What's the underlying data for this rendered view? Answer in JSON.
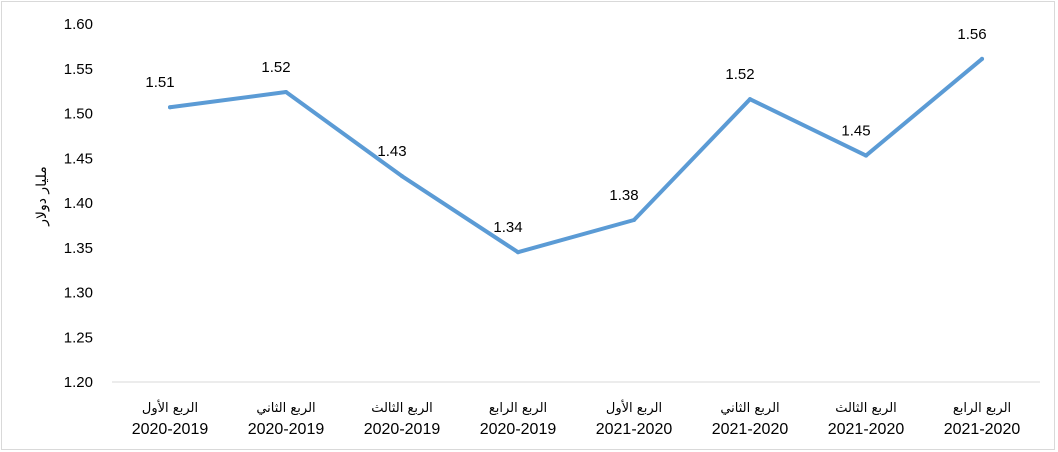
{
  "chart_data": {
    "type": "line",
    "title": "",
    "xlabel": "",
    "ylabel": "مليار دولار",
    "ylim": [
      1.2,
      1.6
    ],
    "yticks": [
      "1.20",
      "1.25",
      "1.30",
      "1.35",
      "1.40",
      "1.45",
      "1.50",
      "1.55",
      "1.60"
    ],
    "categories": [
      {
        "line1": "الربع الأول",
        "line2": "2020-2019"
      },
      {
        "line1": "الربع الثاني",
        "line2": "2020-2019"
      },
      {
        "line1": "الربع الثالث",
        "line2": "2020-2019"
      },
      {
        "line1": "الربع الرابع",
        "line2": "2020-2019"
      },
      {
        "line1": "الربع الأول",
        "line2": "2021-2020"
      },
      {
        "line1": "الربع الثاني",
        "line2": "2021-2020"
      },
      {
        "line1": "الربع الثالث",
        "line2": "2021-2020"
      },
      {
        "line1": "الربع الرابع",
        "line2": "2021-2020"
      }
    ],
    "series": [
      {
        "values": [
          1.507,
          1.524,
          1.43,
          1.345,
          1.381,
          1.516,
          1.453,
          1.561
        ],
        "labels": [
          "1.51",
          "1.52",
          "1.43",
          "1.34",
          "1.38",
          "1.52",
          "1.45",
          "1.56"
        ],
        "color": "#5b9bd5"
      }
    ],
    "grid": false,
    "legend": "none"
  }
}
